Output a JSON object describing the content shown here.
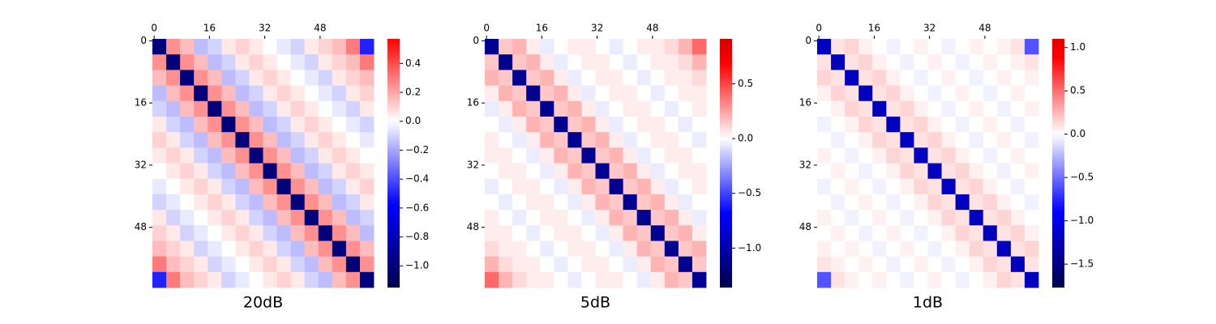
{
  "chart_data": [
    {
      "type": "heatmap",
      "title": "20dB",
      "cmap": "seismic",
      "center": 0,
      "x": [
        0,
        4,
        8,
        12,
        16,
        20,
        24,
        28,
        32,
        36,
        40,
        44,
        48,
        52,
        56,
        60
      ],
      "y": [
        0,
        4,
        8,
        12,
        16,
        20,
        24,
        28,
        32,
        36,
        40,
        44,
        48,
        52,
        56,
        60
      ],
      "xlim": [
        0,
        64
      ],
      "ylim": [
        0,
        64
      ],
      "xticks": [
        0,
        16,
        32,
        48
      ],
      "yticks": [
        0,
        16,
        32,
        48
      ],
      "clim": [
        -1.15,
        0.57
      ],
      "cticks": [
        {
          "value": -1.0,
          "label": "−1.0"
        },
        {
          "value": -0.8,
          "label": "−0.8"
        },
        {
          "value": -0.6,
          "label": "−0.6"
        },
        {
          "value": -0.4,
          "label": "−0.4"
        },
        {
          "value": -0.2,
          "label": "−0.2"
        },
        {
          "value": 0,
          "label": "0.0"
        },
        0.2,
        0.4
      ],
      "values": [
        [
          -1.0,
          0.25,
          0.15,
          -0.15,
          -0.1,
          0.05,
          0.1,
          0.05,
          0,
          -0.05,
          -0.1,
          0.05,
          0.1,
          0.15,
          0.3,
          -0.5
        ],
        [
          0.25,
          -1.0,
          0.25,
          0.15,
          -0.15,
          -0.1,
          0.05,
          0.1,
          0.05,
          0,
          -0.05,
          -0.1,
          0.05,
          0.1,
          0.15,
          0.3
        ],
        [
          0.15,
          0.25,
          -1.0,
          0.25,
          0.15,
          -0.15,
          -0.1,
          0.05,
          0.1,
          0.05,
          0,
          -0.05,
          -0.1,
          0.05,
          0.1,
          0.15
        ],
        [
          -0.15,
          0.15,
          0.25,
          -1.0,
          0.25,
          0.15,
          -0.15,
          -0.1,
          0.05,
          0.1,
          0.05,
          0,
          -0.05,
          -0.1,
          0.05,
          0.1
        ],
        [
          -0.1,
          -0.15,
          0.15,
          0.25,
          -1.0,
          0.25,
          0.15,
          -0.15,
          -0.1,
          0.05,
          0.1,
          0.05,
          0,
          -0.05,
          -0.1,
          0.05
        ],
        [
          0.05,
          -0.1,
          -0.15,
          0.15,
          0.25,
          -1.0,
          0.25,
          0.15,
          -0.15,
          -0.1,
          0.05,
          0.1,
          0.05,
          0,
          -0.05,
          -0.1
        ],
        [
          0.1,
          0.05,
          -0.1,
          -0.15,
          0.15,
          0.25,
          -1.0,
          0.25,
          0.15,
          -0.15,
          -0.1,
          0.05,
          0.1,
          0.05,
          0,
          -0.05
        ],
        [
          0.05,
          0.1,
          0.05,
          -0.1,
          -0.15,
          0.15,
          0.25,
          -1.0,
          0.25,
          0.15,
          -0.15,
          -0.1,
          0.05,
          0.1,
          0.05,
          0
        ],
        [
          0,
          0.05,
          0.1,
          0.05,
          -0.1,
          -0.15,
          0.15,
          0.25,
          -1.0,
          0.25,
          0.15,
          -0.15,
          -0.1,
          0.05,
          0.1,
          0.05
        ],
        [
          -0.05,
          0,
          0.05,
          0.1,
          0.05,
          -0.1,
          -0.15,
          0.15,
          0.25,
          -1.0,
          0.25,
          0.15,
          -0.15,
          -0.1,
          0.05,
          0.1
        ],
        [
          -0.1,
          -0.05,
          0,
          0.05,
          0.1,
          0.05,
          -0.1,
          -0.15,
          0.15,
          0.25,
          -1.0,
          0.25,
          0.15,
          -0.15,
          -0.1,
          0.05
        ],
        [
          0.05,
          -0.1,
          -0.05,
          0,
          0.05,
          0.1,
          0.05,
          -0.1,
          -0.15,
          0.15,
          0.25,
          -1.0,
          0.25,
          0.15,
          -0.15,
          -0.1
        ],
        [
          0.1,
          0.05,
          -0.1,
          -0.05,
          0,
          0.05,
          0.1,
          0.05,
          -0.1,
          -0.15,
          0.15,
          0.25,
          -1.0,
          0.25,
          0.15,
          -0.15
        ],
        [
          0.15,
          0.1,
          0.05,
          -0.1,
          -0.05,
          0,
          0.05,
          0.1,
          0.05,
          -0.1,
          -0.15,
          0.15,
          0.25,
          -1.0,
          0.25,
          0.15
        ],
        [
          0.3,
          0.15,
          0.1,
          0.05,
          -0.1,
          -0.05,
          0,
          0.05,
          0.1,
          0.05,
          -0.1,
          -0.15,
          0.15,
          0.25,
          -1.0,
          0.25
        ],
        [
          -0.5,
          0.3,
          0.15,
          0.1,
          0.05,
          -0.1,
          -0.05,
          0,
          0.05,
          0.1,
          0.05,
          -0.1,
          -0.15,
          0.15,
          0.25,
          -1.0
        ]
      ]
    },
    {
      "type": "heatmap",
      "title": "5dB",
      "cmap": "seismic",
      "center": 0,
      "x": [
        0,
        4,
        8,
        12,
        16,
        20,
        24,
        28,
        32,
        36,
        40,
        44,
        48,
        52,
        56,
        60
      ],
      "y": [
        0,
        4,
        8,
        12,
        16,
        20,
        24,
        28,
        32,
        36,
        40,
        44,
        48,
        52,
        56,
        60
      ],
      "xlim": [
        0,
        64
      ],
      "ylim": [
        0,
        64
      ],
      "xticks": [
        0,
        16,
        32,
        48
      ],
      "yticks": [
        0,
        16,
        32,
        48
      ],
      "clim": [
        -1.36,
        0.91
      ],
      "cticks": [
        {
          "value": -1.0,
          "label": "−1.0"
        },
        {
          "value": -0.5,
          "label": "−0.5"
        },
        {
          "value": 0,
          "label": "0.0"
        },
        0.5
      ],
      "values": [
        [
          -1.1,
          0.15,
          0.2,
          0.05,
          -0.05,
          0,
          0.05,
          0.05,
          0,
          -0.05,
          0,
          0.05,
          0.05,
          0.1,
          0.2,
          0.4
        ],
        [
          0.15,
          -1.1,
          0.15,
          0.2,
          0.05,
          -0.05,
          0,
          0.05,
          0.05,
          0,
          -0.05,
          0,
          0.05,
          0.05,
          0.1,
          0.2
        ],
        [
          0.2,
          0.15,
          -1.1,
          0.15,
          0.2,
          0.05,
          -0.05,
          0,
          0.05,
          0.05,
          0,
          -0.05,
          0,
          0.05,
          0.05,
          0.1
        ],
        [
          0.05,
          0.2,
          0.15,
          -1.1,
          0.15,
          0.2,
          0.05,
          -0.05,
          0,
          0.05,
          0.05,
          0,
          -0.05,
          0,
          0.05,
          0.05
        ],
        [
          -0.05,
          0.05,
          0.2,
          0.15,
          -1.1,
          0.15,
          0.2,
          0.05,
          -0.05,
          0,
          0.05,
          0.05,
          0,
          -0.05,
          0,
          0.05
        ],
        [
          0,
          -0.05,
          0.05,
          0.2,
          0.15,
          -1.1,
          0.15,
          0.2,
          0.05,
          -0.05,
          0,
          0.05,
          0.05,
          0,
          -0.05,
          0
        ],
        [
          0.05,
          0,
          -0.05,
          0.05,
          0.2,
          0.15,
          -1.1,
          0.15,
          0.2,
          0.05,
          -0.05,
          0,
          0.05,
          0.05,
          0,
          -0.05
        ],
        [
          0.05,
          0.05,
          0,
          -0.05,
          0.05,
          0.2,
          0.15,
          -1.1,
          0.15,
          0.2,
          0.05,
          -0.05,
          0,
          0.05,
          0.05,
          0
        ],
        [
          0,
          0.05,
          0.05,
          0,
          -0.05,
          0.05,
          0.2,
          0.15,
          -1.1,
          0.15,
          0.2,
          0.05,
          -0.05,
          0,
          0.05,
          0.05
        ],
        [
          -0.05,
          0,
          0.05,
          0.05,
          0,
          -0.05,
          0.05,
          0.2,
          0.15,
          -1.1,
          0.15,
          0.2,
          0.05,
          -0.05,
          0,
          0.05
        ],
        [
          0,
          -0.05,
          0,
          0.05,
          0.05,
          0,
          -0.05,
          0.05,
          0.2,
          0.15,
          -1.1,
          0.15,
          0.2,
          0.05,
          -0.05,
          0
        ],
        [
          0.05,
          0,
          -0.05,
          0,
          0.05,
          0.05,
          0,
          -0.05,
          0.05,
          0.2,
          0.15,
          -1.1,
          0.15,
          0.2,
          0.05,
          -0.05
        ],
        [
          0.05,
          0.05,
          0,
          -0.05,
          0,
          0.05,
          0.05,
          0,
          -0.05,
          0.05,
          0.2,
          0.15,
          -1.1,
          0.15,
          0.2,
          0.05
        ],
        [
          0.1,
          0.05,
          0.05,
          0,
          -0.05,
          0,
          0.05,
          0.05,
          0,
          -0.05,
          0.05,
          0.2,
          0.15,
          -1.1,
          0.15,
          0.2
        ],
        [
          0.2,
          0.1,
          0.05,
          0.05,
          0,
          -0.05,
          0,
          0.05,
          0.05,
          0,
          -0.05,
          0.05,
          0.2,
          0.15,
          -1.1,
          0.15
        ],
        [
          0.4,
          0.2,
          0.1,
          0.05,
          0.05,
          0,
          -0.05,
          0,
          0.05,
          0.05,
          0,
          -0.05,
          0.05,
          0.2,
          0.15,
          -1.1
        ]
      ]
    },
    {
      "type": "heatmap",
      "title": "1dB",
      "cmap": "seismic",
      "center": 0,
      "x": [
        0,
        4,
        8,
        12,
        16,
        20,
        24,
        28,
        32,
        36,
        40,
        44,
        48,
        52,
        56,
        60
      ],
      "y": [
        0,
        4,
        8,
        12,
        16,
        20,
        24,
        28,
        32,
        36,
        40,
        44,
        48,
        52,
        56,
        60
      ],
      "xlim": [
        0,
        64
      ],
      "ylim": [
        0,
        64
      ],
      "xticks": [
        0,
        16,
        32,
        48
      ],
      "yticks": [
        0,
        16,
        32,
        48
      ],
      "clim": [
        -1.77,
        1.1
      ],
      "cticks": [
        {
          "value": -1.5,
          "label": "−1.5"
        },
        {
          "value": -1.0,
          "label": "−1.0"
        },
        {
          "value": -0.5,
          "label": "−0.5"
        },
        {
          "value": 0,
          "label": "0.0"
        },
        0.5,
        {
          "value": 1.0,
          "label": "1.0"
        }
      ],
      "values": [
        [
          -1.2,
          0.1,
          0.15,
          0.05,
          0,
          -0.05,
          0,
          0.05,
          0,
          -0.05,
          0,
          0.05,
          0,
          0.05,
          0.1,
          -0.6
        ],
        [
          0.1,
          -1.2,
          0.1,
          0.15,
          0.05,
          0,
          -0.05,
          0,
          0.05,
          0,
          -0.05,
          0,
          0.05,
          0,
          0.05,
          0.1
        ],
        [
          0.15,
          0.1,
          -1.2,
          0.1,
          0.15,
          0.05,
          0,
          -0.05,
          0,
          0.05,
          0,
          -0.05,
          0,
          0.05,
          0,
          0.05
        ],
        [
          0.05,
          0.15,
          0.1,
          -1.2,
          0.1,
          0.15,
          0.05,
          0,
          -0.05,
          0,
          0.05,
          0,
          -0.05,
          0,
          0.05,
          0
        ],
        [
          0,
          0.05,
          0.15,
          0.1,
          -1.2,
          0.1,
          0.15,
          0.05,
          0,
          -0.05,
          0,
          0.05,
          0,
          -0.05,
          0,
          0.05
        ],
        [
          -0.05,
          0,
          0.05,
          0.15,
          0.1,
          -1.2,
          0.1,
          0.15,
          0.05,
          0,
          -0.05,
          0,
          0.05,
          0,
          -0.05,
          0
        ],
        [
          0,
          -0.05,
          0,
          0.05,
          0.15,
          0.1,
          -1.2,
          0.1,
          0.15,
          0.05,
          0,
          -0.05,
          0,
          0.05,
          0,
          -0.05
        ],
        [
          0.05,
          0,
          -0.05,
          0,
          0.05,
          0.15,
          0.1,
          -1.2,
          0.1,
          0.15,
          0.05,
          0,
          -0.05,
          0,
          0.05,
          0
        ],
        [
          0,
          0.05,
          0,
          -0.05,
          0,
          0.05,
          0.15,
          0.1,
          -1.2,
          0.1,
          0.15,
          0.05,
          0,
          -0.05,
          0,
          0.05
        ],
        [
          -0.05,
          0,
          0.05,
          0,
          -0.05,
          0,
          0.05,
          0.15,
          0.1,
          -1.2,
          0.1,
          0.15,
          0.05,
          0,
          -0.05,
          0
        ],
        [
          0,
          -0.05,
          0,
          0.05,
          0,
          -0.05,
          0,
          0.05,
          0.15,
          0.1,
          -1.2,
          0.1,
          0.15,
          0.05,
          0,
          -0.05
        ],
        [
          0.05,
          0,
          -0.05,
          0,
          0.05,
          0,
          -0.05,
          0,
          0.05,
          0.15,
          0.1,
          -1.2,
          0.1,
          0.15,
          0.05,
          0
        ],
        [
          0,
          0.05,
          0,
          -0.05,
          0,
          0.05,
          0,
          -0.05,
          0,
          0.05,
          0.15,
          0.1,
          -1.2,
          0.1,
          0.15,
          0.05
        ],
        [
          0.05,
          0,
          0.05,
          0,
          -0.05,
          0,
          0.05,
          0,
          -0.05,
          0,
          0.05,
          0.15,
          0.1,
          -1.2,
          0.1,
          0.15
        ],
        [
          0.1,
          0.05,
          0,
          0.05,
          0,
          -0.05,
          0,
          0.05,
          0,
          -0.05,
          0,
          0.05,
          0.15,
          0.1,
          -1.2,
          0.1
        ],
        [
          -0.6,
          0.1,
          0.05,
          0,
          0.05,
          0,
          -0.05,
          0,
          0.05,
          0,
          -0.05,
          0,
          0.05,
          0.15,
          0.1,
          -1.2
        ]
      ]
    }
  ]
}
